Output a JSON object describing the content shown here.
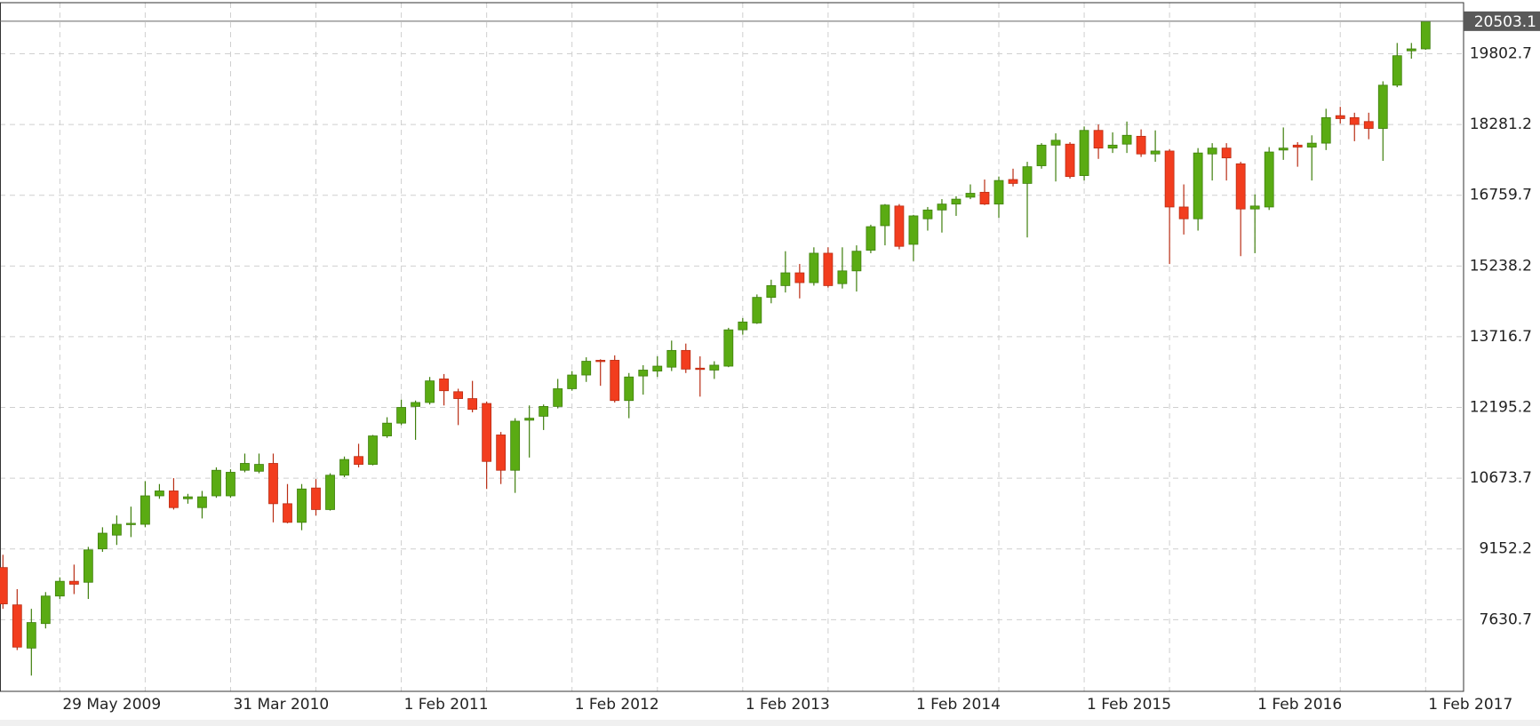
{
  "chart_data": {
    "type": "candlestick",
    "categories": [
      null,
      null,
      null,
      null,
      "29 May 2009",
      null,
      null,
      null,
      null,
      null,
      null,
      null,
      null,
      null,
      null,
      null,
      "31 Mar 2010",
      null,
      null,
      null,
      null,
      null,
      null,
      null,
      null,
      null,
      null,
      null,
      "1 Feb 2011",
      null,
      null,
      null,
      null,
      null,
      null,
      null,
      null,
      null,
      null,
      null,
      "1 Feb 2012",
      null,
      null,
      null,
      null,
      null,
      null,
      null,
      null,
      null,
      null,
      null,
      "1 Feb 2013",
      null,
      null,
      null,
      null,
      null,
      null,
      null,
      null,
      null,
      null,
      null,
      "1 Feb 2014",
      null,
      null,
      null,
      null,
      null,
      null,
      null,
      null,
      null,
      null,
      null,
      "1 Feb 2015",
      null,
      null,
      null,
      null,
      null,
      null,
      null,
      null,
      null,
      null,
      null,
      "1 Feb 2016",
      null,
      null,
      null,
      null,
      null,
      null,
      null,
      null,
      null,
      null,
      null,
      "1 Feb 2017"
    ],
    "open": [
      8752,
      7949,
      7019,
      7547,
      8139,
      8456,
      8435,
      9153,
      9449,
      9682,
      9682,
      10294,
      10400,
      10231,
      10041,
      10294,
      10294,
      10844,
      10823,
      10992,
      10125,
      9724,
      10463,
      9999,
      10738,
      11140,
      10971,
      11583,
      11858,
      12217,
      12302,
      12809,
      12534,
      12386,
      12281,
      11604,
      10844,
      11921,
      12006,
      12217,
      12598,
      12893,
      13210,
      13210,
      12344,
      12872,
      12978,
      13062,
      13422,
      13041,
      12999,
      13084,
      13865,
      14013,
      14563,
      14816,
      15091,
      14880,
      15513,
      14858,
      15133,
      15577,
      16105,
      16528,
      15704,
      16253,
      16443,
      16570,
      16718,
      16824,
      16570,
      17098,
      17014,
      17394,
      17838,
      17859,
      17183,
      18155,
      17774,
      17859,
      18028,
      17648,
      17711,
      16507,
      16253,
      17648,
      17774,
      17436,
      16464,
      16507,
      17732,
      17838,
      17795,
      17880,
      18472,
      18429,
      18345,
      18197,
      19127,
      19866,
      19908
    ],
    "high": [
      9027,
      8287,
      7864,
      8224,
      8541,
      8815,
      9196,
      9618,
      9872,
      10062,
      10611,
      10548,
      10675,
      10337,
      10400,
      10907,
      10865,
      11203,
      11203,
      11203,
      10548,
      10548,
      10654,
      10780,
      11140,
      11414,
      11604,
      11985,
      12365,
      12344,
      12851,
      12914,
      12598,
      12767,
      12323,
      11668,
      11964,
      12238,
      12259,
      12809,
      12978,
      13274,
      13231,
      13316,
      12936,
      13105,
      13295,
      13633,
      13569,
      13295,
      13189,
      13908,
      14119,
      14626,
      14943,
      15556,
      15281,
      15640,
      15640,
      15640,
      15682,
      16126,
      16570,
      16570,
      16338,
      16507,
      16676,
      16739,
      16993,
      17098,
      17162,
      17331,
      17479,
      17880,
      18091,
      17901,
      18239,
      18281,
      18112,
      18345,
      18176,
      18155,
      17753,
      16993,
      17774,
      17880,
      17880,
      17479,
      16781,
      17795,
      18218,
      17901,
      18049,
      18620,
      18662,
      18535,
      18535,
      19211,
      20035,
      20035,
      20503.1
    ],
    "low": [
      7864,
      6977,
      6428,
      7442,
      8076,
      8181,
      8076,
      9090,
      9238,
      9407,
      9618,
      10231,
      9999,
      10125,
      9808,
      10252,
      10252,
      10801,
      10780,
      9724,
      9703,
      9555,
      9872,
      9977,
      10696,
      10907,
      10949,
      11541,
      11816,
      11499,
      12259,
      12238,
      11816,
      12090,
      10442,
      10548,
      10358,
      11118,
      11710,
      12175,
      12555,
      12745,
      12661,
      12302,
      11964,
      12471,
      12851,
      12978,
      12936,
      12428,
      12809,
      13062,
      13760,
      13992,
      14436,
      14668,
      14541,
      14816,
      14774,
      14753,
      14689,
      15513,
      15682,
      15598,
      15344,
      15999,
      15957,
      16316,
      16676,
      16549,
      16274,
      16950,
      15852,
      17331,
      17056,
      17119,
      17077,
      17542,
      17669,
      17669,
      17584,
      17479,
      15281,
      15915,
      15999,
      17077,
      17077,
      15450,
      15513,
      16443,
      17521,
      17373,
      17077,
      17732,
      18303,
      17922,
      17965,
      17500,
      19084,
      19697,
      19887
    ],
    "close": [
      7970,
      7040,
      7569,
      8139,
      8456,
      8393,
      9132,
      9491,
      9682,
      9703,
      10294,
      10400,
      10041,
      10273,
      10273,
      10844,
      10801,
      10992,
      10971,
      10125,
      9724,
      10442,
      9999,
      10738,
      11076,
      10971,
      11583,
      11858,
      12196,
      12302,
      12767,
      12555,
      12386,
      12154,
      11034,
      10844,
      11900,
      11964,
      12217,
      12598,
      12893,
      13189,
      13189,
      12344,
      12851,
      12999,
      13084,
      13422,
      13020,
      13020,
      13105,
      13865,
      14034,
      14563,
      14816,
      15091,
      14880,
      15513,
      14816,
      15133,
      15556,
      16084,
      16549,
      15661,
      16316,
      16443,
      16570,
      16676,
      16802,
      16570,
      17077,
      17014,
      17373,
      17838,
      17943,
      17162,
      18155,
      17774,
      17838,
      18049,
      17648,
      17711,
      16507,
      16253,
      17669,
      17774,
      17563,
      16464,
      16528,
      17690,
      17774,
      17795,
      17880,
      18429,
      18408,
      18281,
      18197,
      19127,
      19761,
      19908,
      20503.1
    ],
    "up_color": "#5aab13",
    "down_color": "#f23d1e",
    "ylim": [
      6089,
      20902
    ],
    "yticks": [
      7630.7,
      9152.2,
      10673.7,
      12195.2,
      13716.7,
      15238.2,
      16759.7,
      18281.2,
      19802.7
    ],
    "grid": true
  }
}
